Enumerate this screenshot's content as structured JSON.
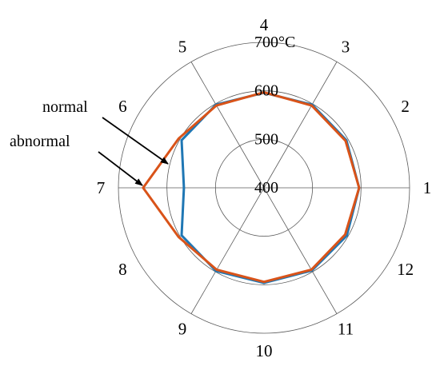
{
  "chart_data": {
    "type": "polar-line",
    "angular_labels": [
      "1",
      "2",
      "3",
      "4",
      "5",
      "6",
      "7",
      "8",
      "9",
      "10",
      "11",
      "12"
    ],
    "radial_ticks": [
      {
        "value": 400,
        "label": "400"
      },
      {
        "value": 500,
        "label": "500"
      },
      {
        "value": 600,
        "label": "600"
      },
      {
        "value": 700,
        "label": "700°C"
      }
    ],
    "rlim": [
      400,
      700
    ],
    "grid": true,
    "series": [
      {
        "name": "normal",
        "color": "#1f77b4",
        "values": [
          596,
          596,
          598,
          596,
          598,
          596,
          565,
          596,
          598,
          596,
          597,
          597
        ]
      },
      {
        "name": "abnormal",
        "color": "#d95319",
        "values": [
          596,
          594,
          596,
          597,
          596,
          603,
          649,
          603,
          595,
          594,
          595,
          593
        ]
      }
    ]
  },
  "annotations": [
    {
      "text": "normal",
      "series": "normal"
    },
    {
      "text": "abnormal",
      "series": "abnormal"
    }
  ]
}
